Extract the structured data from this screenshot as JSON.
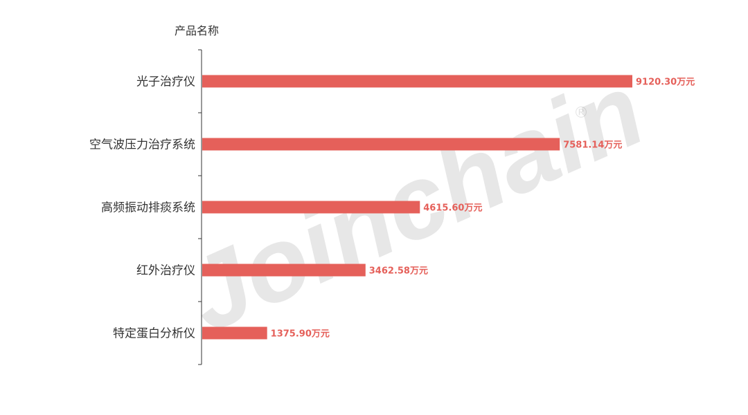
{
  "chart_data": {
    "type": "bar",
    "orientation": "horizontal",
    "yaxis_title": "产品名称",
    "categories": [
      "光子治疗仪",
      "空气波压力治疗系统",
      "高频振动排痰系统",
      "红外治疗仪",
      "特定蛋白分析仪"
    ],
    "values": [
      9120.3,
      7581.14,
      4615.6,
      3462.58,
      1375.9
    ],
    "value_labels": [
      "9120.30万元",
      "7581.14万元",
      "4615.60万元",
      "3462.58万元",
      "1375.90万元"
    ],
    "unit": "万元",
    "grid": false,
    "legend": "none",
    "colors": {
      "bar": "#e5605a",
      "label": "#e5605a",
      "axis": "#333333"
    }
  },
  "watermark": "Joinchain®"
}
